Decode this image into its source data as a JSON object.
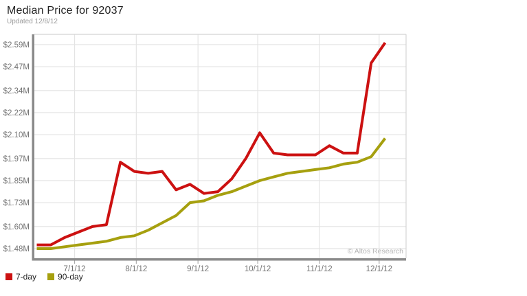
{
  "header": {
    "title": "Median Price for 92037",
    "subtitle": "Updated 12/8/12"
  },
  "legend": {
    "items": [
      {
        "label": "7-day",
        "color": "#cc1111"
      },
      {
        "label": "90-day",
        "color": "#a6a00f"
      }
    ]
  },
  "watermark": "© Altos Research",
  "palette": {
    "grid": "#e4e4e4",
    "axis_bar": "#8a8a8a",
    "border_light": "#d4d4d4",
    "tick": "#aaaaaa",
    "axis_label": "#737373",
    "watermark": "#b5b5b5"
  },
  "chart_data": {
    "type": "line",
    "title": "Median Price for 92037",
    "subtitle": "Updated 12/8/12",
    "unit": "USD millions",
    "x_axis": {
      "kind": "date",
      "tick_labels": [
        "7/1/12",
        "8/1/12",
        "9/1/12",
        "10/1/12",
        "11/1/12",
        "12/1/12"
      ],
      "tick_day_offsets": [
        19,
        50,
        81,
        111,
        142,
        172
      ],
      "domain_days": [
        0,
        175
      ],
      "grid": true
    },
    "y_axis": {
      "tick_labels": [
        "$2.59M",
        "$2.47M",
        "$2.34M",
        "$2.22M",
        "$2.10M",
        "$1.97M",
        "$1.85M",
        "$1.73M",
        "$1.60M",
        "$1.48M"
      ],
      "tick_values": [
        2.59,
        2.47,
        2.34,
        2.22,
        2.1,
        1.97,
        1.85,
        1.73,
        1.6,
        1.48
      ],
      "min": 1.48,
      "max": 2.59,
      "grid": true
    },
    "series": [
      {
        "name": "7-day",
        "color": "#cc1111",
        "interval_days": 7,
        "values": [
          1.5,
          1.5,
          1.54,
          1.57,
          1.6,
          1.61,
          1.95,
          1.9,
          1.89,
          1.9,
          1.8,
          1.83,
          1.78,
          1.79,
          1.86,
          1.97,
          2.11,
          2.0,
          1.99,
          1.99,
          1.99,
          2.04,
          2.0,
          2.0,
          2.49,
          2.6
        ]
      },
      {
        "name": "90-day",
        "color": "#a6a00f",
        "interval_days": 7,
        "values": [
          1.48,
          1.48,
          1.49,
          1.5,
          1.51,
          1.52,
          1.54,
          1.55,
          1.58,
          1.62,
          1.66,
          1.73,
          1.74,
          1.77,
          1.79,
          1.82,
          1.85,
          1.87,
          1.89,
          1.9,
          1.91,
          1.92,
          1.94,
          1.95,
          1.98,
          2.08
        ]
      }
    ],
    "legend_position": "bottom-left",
    "watermark": "© Altos Research"
  }
}
